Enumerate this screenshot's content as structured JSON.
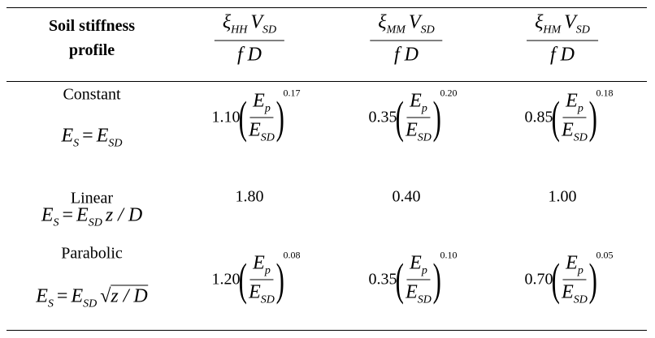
{
  "header": {
    "col0": "Soil stiffness profile",
    "col0_line1": "Soil stiffness",
    "col0_line2": "profile",
    "cols": [
      {
        "xi": "ξ",
        "xi_sub": "HH",
        "v": "V",
        "v_sub": "SD",
        "den": "f D"
      },
      {
        "xi": "ξ",
        "xi_sub": "MM",
        "v": "V",
        "v_sub": "SD",
        "den": "f D"
      },
      {
        "xi": "ξ",
        "xi_sub": "HM",
        "v": "V",
        "v_sub": "SD",
        "den": "f D"
      }
    ]
  },
  "rows": [
    {
      "label": "Constant",
      "formula": {
        "lhs": "E",
        "lhs_sub": "S",
        "eq": "=",
        "rhs": "E",
        "rhs_sub": "SD",
        "tail": ""
      },
      "cells": [
        {
          "coef": "1.10",
          "exp": "0.17"
        },
        {
          "coef": "0.35",
          "exp": "0.20"
        },
        {
          "coef": "0.85",
          "exp": "0.18"
        }
      ]
    },
    {
      "label": "Linear",
      "formula": {
        "lhs": "E",
        "lhs_sub": "S",
        "eq": "=",
        "rhs": "E",
        "rhs_sub": "SD",
        "tail": "z / D"
      },
      "cells": [
        {
          "value": "1.80"
        },
        {
          "value": "0.40"
        },
        {
          "value": "1.00"
        }
      ]
    },
    {
      "label": "Parabolic",
      "formula": {
        "lhs": "E",
        "lhs_sub": "S",
        "eq": "=",
        "rhs": "E",
        "rhs_sub": "SD",
        "sqrt": "√",
        "tail": "z / D"
      },
      "cells": [
        {
          "coef": "1.20",
          "exp": "0.08"
        },
        {
          "coef": "0.35",
          "exp": "0.10"
        },
        {
          "coef": "0.70",
          "exp": "0.05"
        }
      ]
    }
  ],
  "ratio": {
    "num": "E",
    "num_sub": "p",
    "den": "E",
    "den_sub": "SD",
    "lparen": "(",
    "rparen": ")"
  }
}
